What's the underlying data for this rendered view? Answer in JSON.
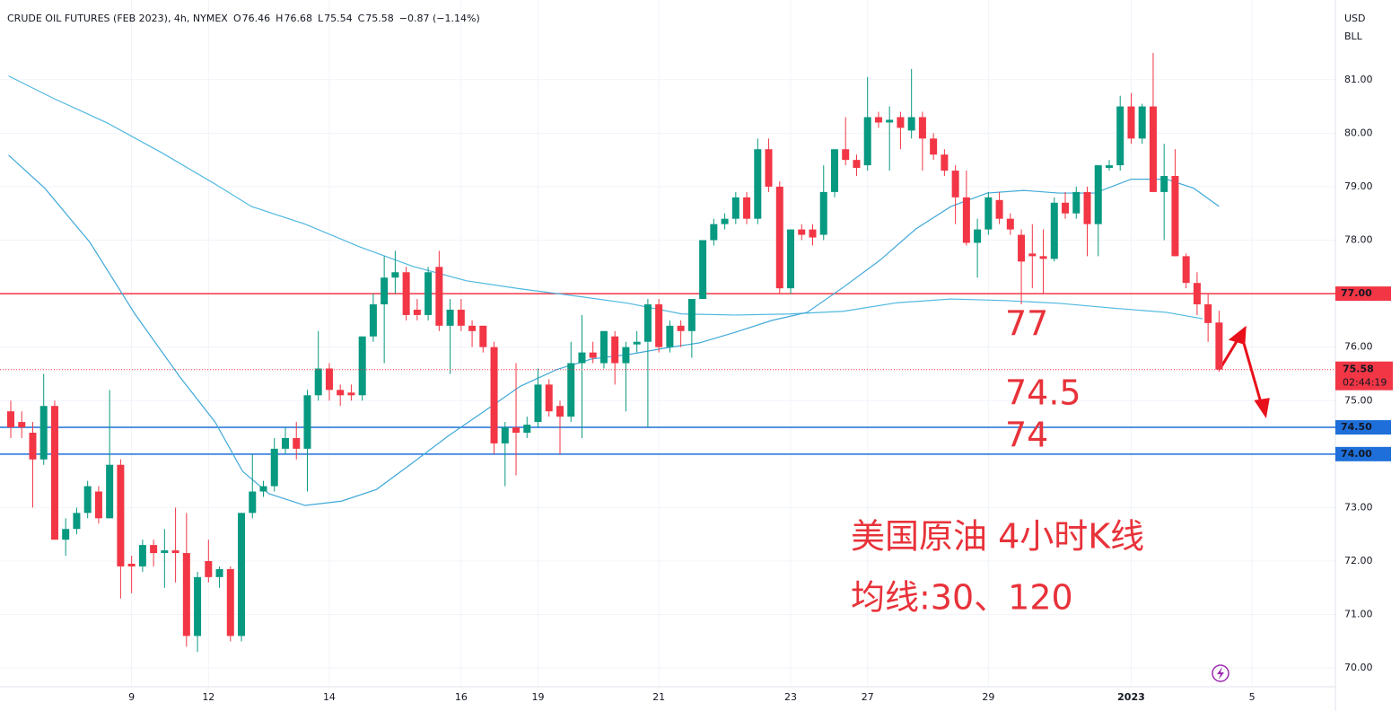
{
  "chart_data": {
    "type": "candlestick",
    "title": "CRUDE OIL FUTURES (FEB 2023), 4h, NYMEX",
    "ohlc_keys": [
      "O",
      "H",
      "L",
      "C"
    ],
    "change": "−0.87 (−1.14%)",
    "currency": "USD",
    "unit": "BLL",
    "countdown": "02:44:19",
    "up_color": "#089981",
    "down_color": "#f23645",
    "ylim": [
      69.65,
      82.49
    ],
    "yticks": [
      {
        "value": 70,
        "label": "70.00"
      },
      {
        "value": 71,
        "label": "71.00"
      },
      {
        "value": 72,
        "label": "72.00"
      },
      {
        "value": 73,
        "label": "73.00"
      },
      {
        "value": 74,
        "label": "74.00"
      },
      {
        "value": 75,
        "label": "75.00"
      },
      {
        "value": 76,
        "label": "76.00"
      },
      {
        "value": 77,
        "label": "77.00"
      },
      {
        "value": 78,
        "label": "78.00"
      },
      {
        "value": 79,
        "label": "79.00"
      },
      {
        "value": 80,
        "label": "80.00"
      },
      {
        "value": 81,
        "label": "81.00"
      }
    ],
    "xlim": [
      -0.98,
      120.59
    ],
    "xticks": [
      {
        "value": 11,
        "label": "9"
      },
      {
        "value": 18,
        "label": "12"
      },
      {
        "value": 29,
        "label": "14"
      },
      {
        "value": 41,
        "label": "16"
      },
      {
        "value": 48,
        "label": "19"
      },
      {
        "value": 59,
        "label": "21"
      },
      {
        "value": 71,
        "label": "23"
      },
      {
        "value": 78,
        "label": "27"
      },
      {
        "value": 89,
        "label": "29"
      },
      {
        "value": 102,
        "label": "2023"
      },
      {
        "value": 113,
        "label": "5"
      }
    ],
    "grid": true,
    "ohlc": [
      [
        74.8,
        75.0,
        74.3,
        74.5
      ],
      [
        74.6,
        74.8,
        74.3,
        74.5
      ],
      [
        74.4,
        74.6,
        73.0,
        73.9
      ],
      [
        73.9,
        75.5,
        73.8,
        74.9
      ],
      [
        74.9,
        75.0,
        72.4,
        72.4
      ],
      [
        72.4,
        72.8,
        72.1,
        72.6
      ],
      [
        72.6,
        73.0,
        72.5,
        72.9
      ],
      [
        72.9,
        73.5,
        72.8,
        73.4
      ],
      [
        73.3,
        73.4,
        72.7,
        72.8
      ],
      [
        72.8,
        75.2,
        72.8,
        73.8
      ],
      [
        73.8,
        73.9,
        71.3,
        71.9
      ],
      [
        71.95,
        72.1,
        71.4,
        71.9
      ],
      [
        71.9,
        72.4,
        71.8,
        72.3
      ],
      [
        72.3,
        72.4,
        71.9,
        72.15
      ],
      [
        72.15,
        72.6,
        71.5,
        72.2
      ],
      [
        72.2,
        73.0,
        71.6,
        72.15
      ],
      [
        72.15,
        72.9,
        70.4,
        70.6
      ],
      [
        70.6,
        71.8,
        70.3,
        71.7
      ],
      [
        72.0,
        72.4,
        71.6,
        71.7
      ],
      [
        71.7,
        71.9,
        71.5,
        71.85
      ],
      [
        71.85,
        71.9,
        70.5,
        70.6
      ],
      [
        70.6,
        72.9,
        70.5,
        72.9
      ],
      [
        72.9,
        74.0,
        72.8,
        73.3
      ],
      [
        73.3,
        73.5,
        73.2,
        73.4
      ],
      [
        73.4,
        74.3,
        73.3,
        74.1
      ],
      [
        74.1,
        74.5,
        74.0,
        74.3
      ],
      [
        74.3,
        74.6,
        73.9,
        74.1
      ],
      [
        74.1,
        75.2,
        73.3,
        75.1
      ],
      [
        75.1,
        76.3,
        75.0,
        75.6
      ],
      [
        75.6,
        75.7,
        75.0,
        75.2
      ],
      [
        75.2,
        75.3,
        74.9,
        75.1
      ],
      [
        75.15,
        75.3,
        75.0,
        75.1
      ],
      [
        75.1,
        76.2,
        75.0,
        76.2
      ],
      [
        76.2,
        77.0,
        76.1,
        76.8
      ],
      [
        76.8,
        77.7,
        75.7,
        77.3
      ],
      [
        77.3,
        77.8,
        77.0,
        77.4
      ],
      [
        77.4,
        77.5,
        76.5,
        76.6
      ],
      [
        76.7,
        76.9,
        76.5,
        76.6
      ],
      [
        76.6,
        77.5,
        76.5,
        77.4
      ],
      [
        77.5,
        77.8,
        76.3,
        76.4
      ],
      [
        76.4,
        76.9,
        75.5,
        76.7
      ],
      [
        76.7,
        76.9,
        76.3,
        76.4
      ],
      [
        76.4,
        76.5,
        76.0,
        76.3
      ],
      [
        76.4,
        76.4,
        75.9,
        76.0
      ],
      [
        76.0,
        76.1,
        74.0,
        74.2
      ],
      [
        74.2,
        74.6,
        73.4,
        74.5
      ],
      [
        74.5,
        75.7,
        73.6,
        74.4
      ],
      [
        74.4,
        74.7,
        74.3,
        74.55
      ],
      [
        74.6,
        75.6,
        74.5,
        75.3
      ],
      [
        75.3,
        75.4,
        74.7,
        74.8
      ],
      [
        74.9,
        75.0,
        74.0,
        74.7
      ],
      [
        74.7,
        76.1,
        74.6,
        75.7
      ],
      [
        75.7,
        76.6,
        74.3,
        75.9
      ],
      [
        75.9,
        76.1,
        75.7,
        75.8
      ],
      [
        75.7,
        76.3,
        75.6,
        76.3
      ],
      [
        76.2,
        76.3,
        75.3,
        75.7
      ],
      [
        75.7,
        76.1,
        74.8,
        76.0
      ],
      [
        76.05,
        76.3,
        75.9,
        76.1
      ],
      [
        76.1,
        76.9,
        74.5,
        76.8
      ],
      [
        76.8,
        76.9,
        75.9,
        76.0
      ],
      [
        76.0,
        76.5,
        75.9,
        76.4
      ],
      [
        76.4,
        76.5,
        76.0,
        76.3
      ],
      [
        76.3,
        76.9,
        75.8,
        76.9
      ],
      [
        76.9,
        78.0,
        76.9,
        78.0
      ],
      [
        78.0,
        78.4,
        77.9,
        78.3
      ],
      [
        78.3,
        78.5,
        78.2,
        78.4
      ],
      [
        78.4,
        78.9,
        78.3,
        78.8
      ],
      [
        78.8,
        78.9,
        78.3,
        78.4
      ],
      [
        78.4,
        79.9,
        78.3,
        79.7
      ],
      [
        79.7,
        79.9,
        78.9,
        79.0
      ],
      [
        79.0,
        79.1,
        77.0,
        77.1
      ],
      [
        77.1,
        78.2,
        77.0,
        78.2
      ],
      [
        78.2,
        78.3,
        78.0,
        78.1
      ],
      [
        78.2,
        78.3,
        77.9,
        78.05
      ],
      [
        78.1,
        79.4,
        78.0,
        78.9
      ],
      [
        78.9,
        79.7,
        78.8,
        79.7
      ],
      [
        79.7,
        80.3,
        79.4,
        79.5
      ],
      [
        79.5,
        79.6,
        79.2,
        79.35
      ],
      [
        79.4,
        81.05,
        79.3,
        80.3
      ],
      [
        80.3,
        80.4,
        80.1,
        80.2
      ],
      [
        80.2,
        80.5,
        79.3,
        80.25
      ],
      [
        80.3,
        80.4,
        79.7,
        80.1
      ],
      [
        80.05,
        81.2,
        79.9,
        80.3
      ],
      [
        80.3,
        80.4,
        79.3,
        79.9
      ],
      [
        79.9,
        80.0,
        79.5,
        79.6
      ],
      [
        79.6,
        79.7,
        79.2,
        79.3
      ],
      [
        79.3,
        79.4,
        78.3,
        78.8
      ],
      [
        78.8,
        79.3,
        77.9,
        77.95
      ],
      [
        77.95,
        78.4,
        77.3,
        78.2
      ],
      [
        78.2,
        78.9,
        78.1,
        78.8
      ],
      [
        78.75,
        78.9,
        78.3,
        78.4
      ],
      [
        78.4,
        78.5,
        78.1,
        78.2
      ],
      [
        78.1,
        78.2,
        76.8,
        77.6
      ],
      [
        77.75,
        78.3,
        77.1,
        77.7
      ],
      [
        77.7,
        78.2,
        77.0,
        77.65
      ],
      [
        77.65,
        78.8,
        77.6,
        78.7
      ],
      [
        78.7,
        78.9,
        78.4,
        78.5
      ],
      [
        78.5,
        79.0,
        78.4,
        78.9
      ],
      [
        78.9,
        79.0,
        77.7,
        78.3
      ],
      [
        78.3,
        79.4,
        77.7,
        79.4
      ],
      [
        79.35,
        79.5,
        79.3,
        79.4
      ],
      [
        79.4,
        80.7,
        79.3,
        80.5
      ],
      [
        80.5,
        80.75,
        79.8,
        79.9
      ],
      [
        79.9,
        80.55,
        79.8,
        80.5
      ],
      [
        80.5,
        81.5,
        78.9,
        78.9
      ],
      [
        78.9,
        79.8,
        78.0,
        79.2
      ],
      [
        79.2,
        79.7,
        77.7,
        77.7
      ],
      [
        77.7,
        77.75,
        77.1,
        77.2
      ],
      [
        77.2,
        77.4,
        76.6,
        76.8
      ],
      [
        76.8,
        77.0,
        76.1,
        76.45
      ],
      [
        76.46,
        76.68,
        75.54,
        75.58
      ]
    ],
    "lines": [
      {
        "color": "#4fb8e0",
        "x": [
          -0.2,
          3.9,
          8.8,
          13.7,
          18.6,
          21.9,
          26.8,
          31.7,
          36.6,
          41.5,
          46.4,
          51.3,
          56.2,
          61.1,
          66.0,
          70.9,
          75.8,
          80.7,
          85.6,
          90.5,
          95.4,
          100.3,
          105.2,
          108.5
        ],
        "values": [
          81.07,
          80.65,
          80.19,
          79.64,
          79.05,
          78.63,
          78.3,
          77.88,
          77.51,
          77.24,
          77.09,
          76.96,
          76.82,
          76.62,
          76.6,
          76.62,
          76.67,
          76.83,
          76.9,
          76.87,
          76.82,
          76.73,
          76.65,
          76.53
        ]
      },
      {
        "color": "#3fa9d8",
        "x": [
          -0.2,
          3.1,
          7.2,
          11.3,
          15.4,
          18.6,
          21.1,
          23.5,
          26.8,
          30.1,
          33.3,
          36.6,
          39.9,
          43.1,
          46.4,
          49.7,
          52.9,
          56.2,
          59.5,
          62.7,
          66.0,
          69.3,
          72.5,
          75.8,
          79.1,
          82.4,
          85.6,
          88.9,
          92.2,
          95.4,
          98.7,
          102.0,
          105.2,
          107.7,
          110.0
        ],
        "values": [
          79.59,
          78.97,
          77.96,
          76.62,
          75.44,
          74.6,
          73.68,
          73.26,
          73.04,
          73.12,
          73.34,
          73.84,
          74.35,
          74.8,
          75.27,
          75.58,
          75.78,
          75.86,
          75.98,
          76.08,
          76.28,
          76.5,
          76.65,
          77.12,
          77.62,
          78.21,
          78.63,
          78.88,
          78.93,
          78.88,
          78.88,
          79.14,
          79.14,
          78.97,
          78.63
        ]
      }
    ],
    "levels": [
      {
        "value": 77,
        "label": "77.00",
        "color": "#f23645"
      },
      {
        "value": 74.5,
        "label": "74.50",
        "color": "#1e6fd9"
      },
      {
        "value": 74,
        "label": "74.00",
        "color": "#1e6fd9"
      }
    ],
    "annotations": [
      "77",
      "74.5",
      "74"
    ],
    "caption": [
      "美国原油 4小时K线",
      "均线:30、120"
    ]
  }
}
